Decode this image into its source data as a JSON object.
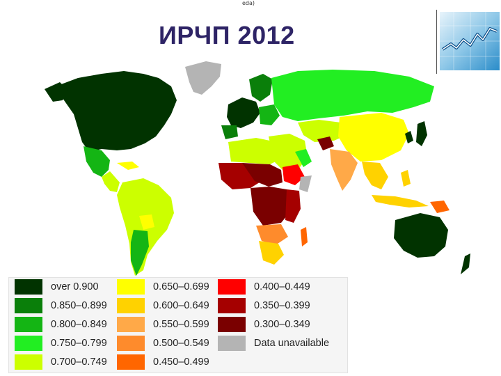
{
  "header": {
    "top_note": "eda)",
    "title": "ИРЧП 2012"
  },
  "logo": {
    "icon": "rising-line-chart-icon"
  },
  "map": {
    "icon": "world-choropleth-map",
    "legend": [
      {
        "label": "over 0.900",
        "color": "#013300"
      },
      {
        "label": "0.850–0.899",
        "color": "#0a7f0a"
      },
      {
        "label": "0.800–0.849",
        "color": "#14b514"
      },
      {
        "label": "0.750–0.799",
        "color": "#22ee22"
      },
      {
        "label": "0.700–0.749",
        "color": "#ccff00"
      },
      {
        "label": "0.650–0.699",
        "color": "#ffff00"
      },
      {
        "label": "0.600–0.649",
        "color": "#ffd200"
      },
      {
        "label": "0.550–0.599",
        "color": "#ffa948"
      },
      {
        "label": "0.500–0.549",
        "color": "#fe8b2c"
      },
      {
        "label": "0.450–0.499",
        "color": "#ff6600"
      },
      {
        "label": "0.400–0.449",
        "color": "#ff0000"
      },
      {
        "label": "0.350–0.399",
        "color": "#a50000"
      },
      {
        "label": "0.300–0.349",
        "color": "#7a0000"
      },
      {
        "label": "Data unavailable",
        "color": "#b4b4b4"
      }
    ]
  }
}
